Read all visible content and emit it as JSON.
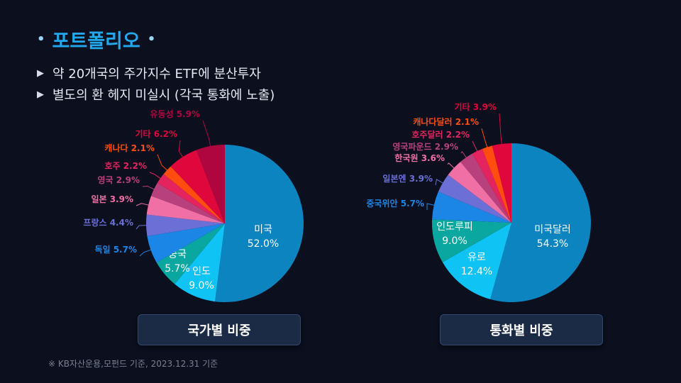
{
  "header": {
    "title": "포트폴리오",
    "bullets": [
      "약 20개국의 주가지수 ETF에 분산투자",
      "별도의 환 헤지 미실시 (각국 통화에 노출)"
    ]
  },
  "footnote": "※  KB자산운용,모펀드 기준,   2023.12.31 기준",
  "chart_data": [
    {
      "type": "pie",
      "title": "국가별 비중",
      "slices": [
        {
          "label": "미국",
          "value": 52.0,
          "display": "52.0%",
          "color": "#0b84bf"
        },
        {
          "label": "인도",
          "value": 9.0,
          "display": "9.0%",
          "color": "#10c3f5"
        },
        {
          "label": "중국",
          "value": 5.7,
          "display": "5.7%",
          "color": "#0aa7a0"
        },
        {
          "label": "독일",
          "value": 5.7,
          "display": "5.7%",
          "color": "#1c86e6"
        },
        {
          "label": "프랑스",
          "value": 4.4,
          "display": "4.4%",
          "color": "#6b6fd6"
        },
        {
          "label": "일본",
          "value": 3.9,
          "display": "3.9%",
          "color": "#f06fa5"
        },
        {
          "label": "영국",
          "value": 2.9,
          "display": "2.9%",
          "color": "#b8417d"
        },
        {
          "label": "호주",
          "value": 2.2,
          "display": "2.2%",
          "color": "#e5245f"
        },
        {
          "label": "캐나다",
          "value": 2.1,
          "display": "2.1%",
          "color": "#ff4d0f"
        },
        {
          "label": "기타",
          "value": 6.2,
          "display": "6.2%",
          "color": "#e0073d"
        },
        {
          "label": "유동성",
          "value": 5.9,
          "display": "5.9%",
          "color": "#b00640"
        }
      ]
    },
    {
      "type": "pie",
      "title": "통화별 비중",
      "slices": [
        {
          "label": "미국달러",
          "value": 54.3,
          "display": "54.3%",
          "color": "#0b84bf"
        },
        {
          "label": "유로",
          "value": 12.4,
          "display": "12.4%",
          "color": "#10c3f5"
        },
        {
          "label": "인도루피",
          "value": 9.0,
          "display": "9.0%",
          "color": "#0aa7a0"
        },
        {
          "label": "중국위안",
          "value": 5.7,
          "display": "5.7%",
          "color": "#1c86e6"
        },
        {
          "label": "일본엔",
          "value": 3.9,
          "display": "3.9%",
          "color": "#6b6fd6"
        },
        {
          "label": "한국원",
          "value": 3.6,
          "display": "3.6%",
          "color": "#f06fa5"
        },
        {
          "label": "영국파운드",
          "value": 2.9,
          "display": "2.9%",
          "color": "#b8417d"
        },
        {
          "label": "호주달러",
          "value": 2.2,
          "display": "2.2%",
          "color": "#e5245f"
        },
        {
          "label": "캐나다달러",
          "value": 2.1,
          "display": "2.1%",
          "color": "#ff4d0f"
        },
        {
          "label": "기타",
          "value": 3.9,
          "display": "3.9%",
          "color": "#e0073d"
        }
      ]
    }
  ]
}
